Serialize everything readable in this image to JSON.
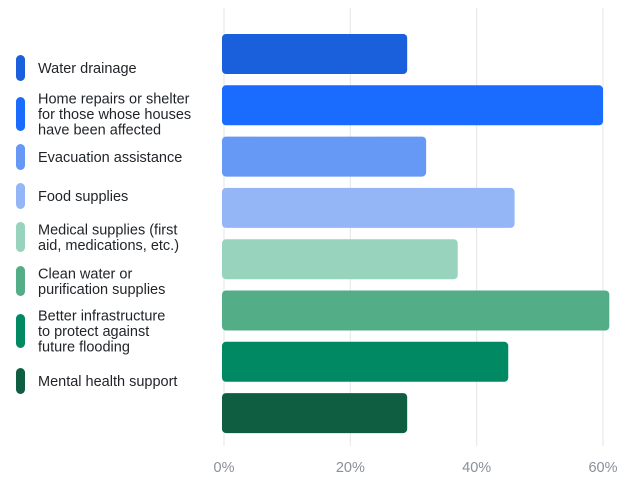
{
  "chart_data": {
    "type": "bar",
    "orientation": "horizontal",
    "categories": [
      "Water drainage",
      "Home repairs or shelter for those whose houses have been affected",
      "Evacuation assistance",
      "Food supplies",
      "Medical supplies (first aid, medications, etc.)",
      "Clean water or purification supplies",
      "Better infrastructure to protect against future flooding",
      "Mental health support"
    ],
    "legend_lines": [
      [
        "Water drainage"
      ],
      [
        "Home repairs or shelter",
        "for those whose houses",
        "have been affected"
      ],
      [
        "Evacuation assistance"
      ],
      [
        "Food supplies"
      ],
      [
        "Medical supplies (first",
        "aid, medications, etc.)"
      ],
      [
        "Clean water or",
        "purification supplies"
      ],
      [
        "Better infrastructure",
        "to protect against",
        "future flooding"
      ],
      [
        "Mental health support"
      ]
    ],
    "values": [
      29,
      60,
      32,
      46,
      37,
      61,
      45,
      29
    ],
    "colors": [
      "#1a5fdc",
      "#1a6cff",
      "#6698f5",
      "#94b6f7",
      "#97d3bd",
      "#53ad87",
      "#018963",
      "#0f5e42"
    ],
    "xlim": [
      0,
      61
    ],
    "xticks": [
      0,
      20,
      40,
      60
    ],
    "xtick_labels": [
      "0%",
      "20%",
      "40%",
      "60%"
    ],
    "grid": true,
    "legend_position": "left"
  }
}
